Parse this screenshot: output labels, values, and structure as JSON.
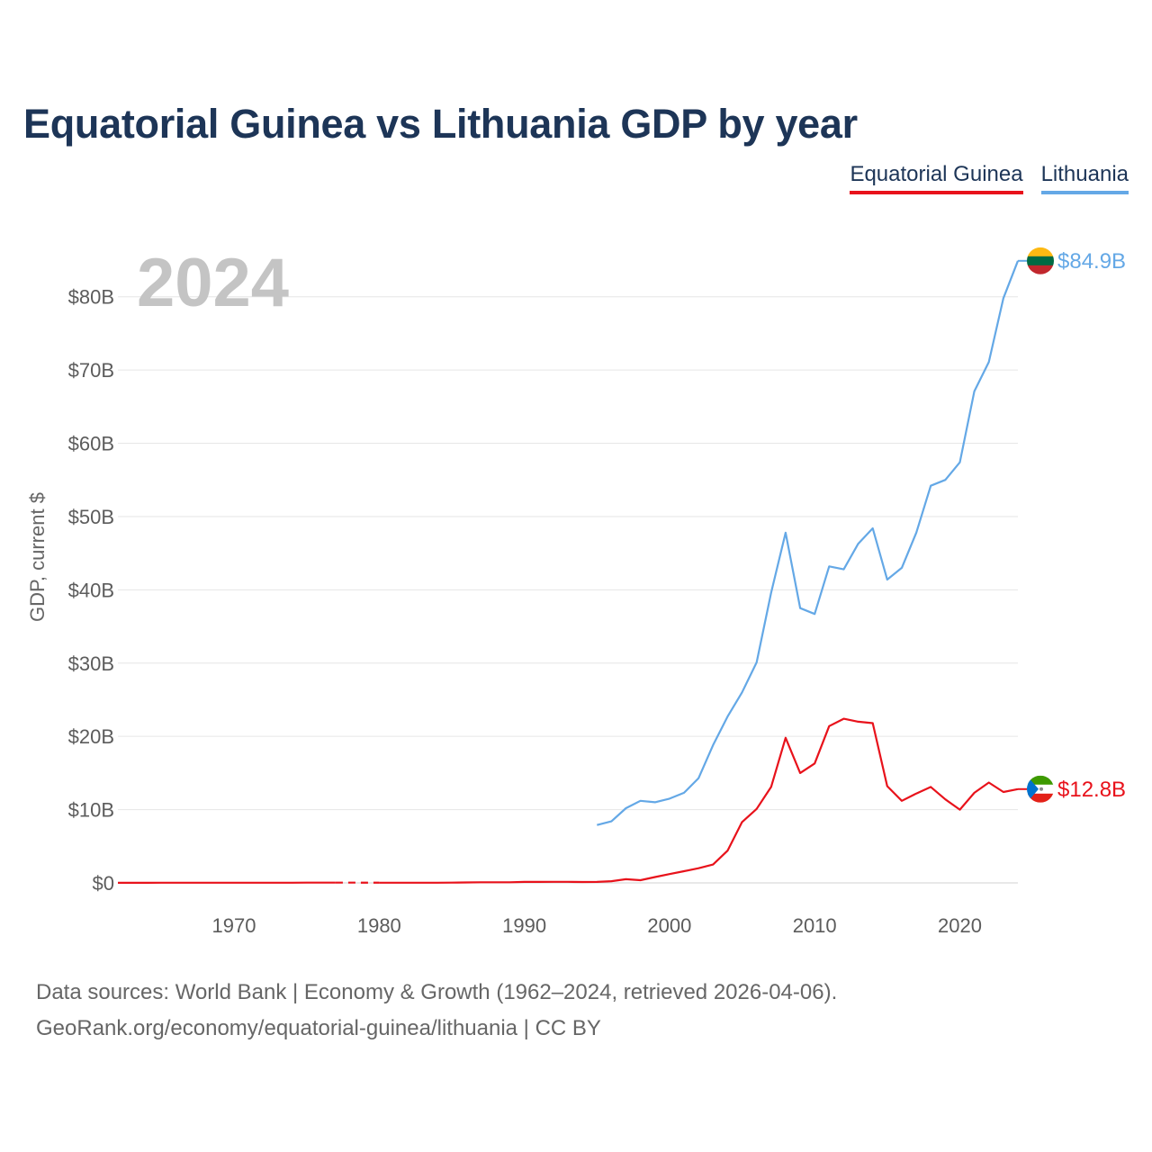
{
  "header": {
    "title": "Equatorial Guinea vs Lithuania GDP by year"
  },
  "legend": {
    "items": [
      {
        "label": "Equatorial Guinea",
        "color": "#e8121b"
      },
      {
        "label": "Lithuania",
        "color": "#64a8e6"
      }
    ]
  },
  "footer": {
    "line1": "Data sources: World Bank | Economy & Growth (1962–2024, retrieved 2026-04-06).",
    "line2": "GeoRank.org/economy/equatorial-guinea/lithuania | CC BY"
  },
  "chart_data": {
    "type": "line",
    "title": "Equatorial Guinea vs Lithuania GDP by year",
    "ylabel": "GDP, current $",
    "xlabel": "",
    "current_year_label": "2024",
    "xlim": [
      1962,
      2024
    ],
    "ylim": [
      0,
      85
    ],
    "y_ticks": [
      0,
      10,
      20,
      30,
      40,
      50,
      60,
      70,
      80
    ],
    "y_tick_labels": [
      "$0",
      "$10B",
      "$20B",
      "$30B",
      "$40B",
      "$50B",
      "$60B",
      "$70B",
      "$80B"
    ],
    "x_ticks": [
      1970,
      1980,
      1990,
      2000,
      2010,
      2020
    ],
    "x_tick_labels": [
      "1970",
      "1980",
      "1990",
      "2000",
      "2010",
      "2020"
    ],
    "grid": true,
    "series": [
      {
        "name": "Equatorial Guinea",
        "color": "#e8121b",
        "end_label": "$12.8B",
        "flag": "equatorial-guinea",
        "gap": [
          1977,
          1980
        ],
        "x": [
          1962,
          1963,
          1964,
          1965,
          1966,
          1967,
          1968,
          1969,
          1970,
          1971,
          1972,
          1973,
          1974,
          1975,
          1976,
          1977,
          1980,
          1981,
          1982,
          1983,
          1984,
          1985,
          1986,
          1987,
          1988,
          1989,
          1990,
          1991,
          1992,
          1993,
          1994,
          1995,
          1996,
          1997,
          1998,
          1999,
          2000,
          2001,
          2002,
          2003,
          2004,
          2005,
          2006,
          2007,
          2008,
          2009,
          2010,
          2011,
          2012,
          2013,
          2014,
          2015,
          2016,
          2017,
          2018,
          2019,
          2020,
          2021,
          2022,
          2023,
          2024
        ],
        "values": [
          0.01,
          0.01,
          0.01,
          0.02,
          0.02,
          0.02,
          0.02,
          0.02,
          0.02,
          0.02,
          0.02,
          0.03,
          0.03,
          0.04,
          0.04,
          0.04,
          0.03,
          0.03,
          0.02,
          0.02,
          0.03,
          0.04,
          0.06,
          0.08,
          0.09,
          0.09,
          0.13,
          0.13,
          0.15,
          0.15,
          0.12,
          0.14,
          0.23,
          0.5,
          0.37,
          0.8,
          1.2,
          1.6,
          2.0,
          2.5,
          4.4,
          8.3,
          10.1,
          13.1,
          19.8,
          15.0,
          16.3,
          21.4,
          22.4,
          22.0,
          21.8,
          13.2,
          11.2,
          12.2,
          13.1,
          11.4,
          10.0,
          12.3,
          13.7,
          12.4,
          12.8
        ]
      },
      {
        "name": "Lithuania",
        "color": "#64a8e6",
        "end_label": "$84.9B",
        "flag": "lithuania",
        "x": [
          1995,
          1996,
          1997,
          1998,
          1999,
          2000,
          2001,
          2002,
          2003,
          2004,
          2005,
          2006,
          2007,
          2008,
          2009,
          2010,
          2011,
          2012,
          2013,
          2014,
          2015,
          2016,
          2017,
          2018,
          2019,
          2020,
          2021,
          2022,
          2023,
          2024
        ],
        "values": [
          7.9,
          8.4,
          10.2,
          11.2,
          11.0,
          11.5,
          12.3,
          14.3,
          18.8,
          22.7,
          26.0,
          30.1,
          39.6,
          47.8,
          37.5,
          36.7,
          43.2,
          42.8,
          46.3,
          48.4,
          41.4,
          43.0,
          47.8,
          54.2,
          55.0,
          57.4,
          67.1,
          71.1,
          79.8,
          84.9
        ]
      }
    ]
  }
}
